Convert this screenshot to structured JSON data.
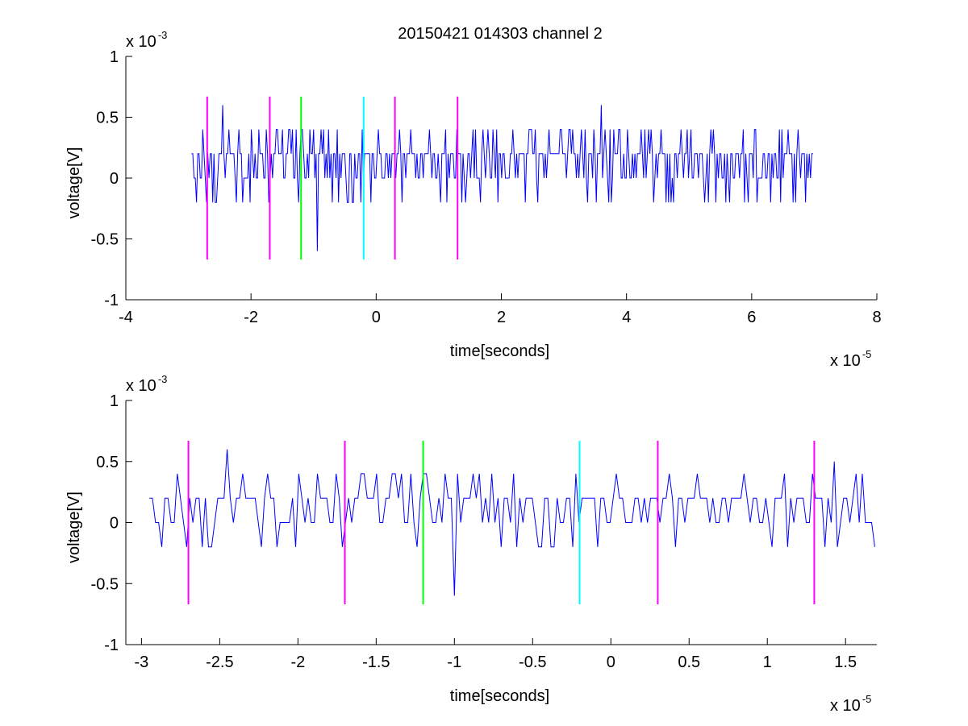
{
  "figure": {
    "title": "20150421 014303 channel 2"
  },
  "colors": {
    "trace": "#0000ff",
    "magenta": "#ff00ff",
    "green": "#00ff00",
    "cyan": "#00ffff",
    "axis": "#000000"
  },
  "chart_data": [
    {
      "type": "line",
      "xlabel": "time[seconds]",
      "ylabel": "voltage[V]",
      "x_multiplier_label": "x 10",
      "x_multiplier_exp": "-5",
      "y_multiplier_label": "x 10",
      "y_multiplier_exp": "-3",
      "xlim": [
        -4,
        8
      ],
      "ylim": [
        -1,
        1
      ],
      "xticks": [
        -4,
        -2,
        0,
        2,
        4,
        6,
        8
      ],
      "xtick_labels": [
        "-4",
        "-2",
        "0",
        "2",
        "4",
        "6",
        "8"
      ],
      "yticks": [
        -1,
        -0.5,
        0,
        0.5,
        1
      ],
      "ytick_labels": [
        "-1",
        "-0.5",
        "0",
        "0.5",
        "1"
      ],
      "grid": false,
      "series": [
        {
          "color": "#0000ff",
          "x_start": -2.95,
          "x_end": 7.0,
          "x_step": 0.0199,
          "y_levels": [
            -0.2,
            0,
            0.2,
            0.4
          ],
          "notable_points": [
            {
              "x": -0.95,
              "y": -0.6
            },
            {
              "x": -2.45,
              "y": 0.6
            },
            {
              "x": 3.6,
              "y": 0.6
            }
          ]
        }
      ],
      "markers": [
        {
          "x": -2.7,
          "y_min": -0.67,
          "y_max": 0.67,
          "color": "#ff00ff"
        },
        {
          "x": -1.7,
          "y_min": -0.67,
          "y_max": 0.67,
          "color": "#ff00ff"
        },
        {
          "x": -1.2,
          "y_min": -0.67,
          "y_max": 0.67,
          "color": "#00ff00"
        },
        {
          "x": -0.2,
          "y_min": -0.67,
          "y_max": 0.67,
          "color": "#00ffff"
        },
        {
          "x": 0.3,
          "y_min": -0.67,
          "y_max": 0.67,
          "color": "#ff00ff"
        },
        {
          "x": 1.3,
          "y_min": -0.67,
          "y_max": 0.67,
          "color": "#ff00ff"
        }
      ]
    },
    {
      "type": "line",
      "xlabel": "time[seconds]",
      "ylabel": "voltage[V]",
      "x_multiplier_label": "x 10",
      "x_multiplier_exp": "-5",
      "y_multiplier_label": "x 10",
      "y_multiplier_exp": "-3",
      "xlim": [
        -3.1,
        1.7
      ],
      "ylim": [
        -1,
        1
      ],
      "xticks": [
        -3,
        -2.5,
        -2,
        -1.5,
        -1,
        -0.5,
        0,
        0.5,
        1,
        1.5
      ],
      "xtick_labels": [
        "-3",
        "-2.5",
        "-2",
        "-1.5",
        "-1",
        "-0.5",
        "0",
        "0.5",
        "1",
        "1.5"
      ],
      "yticks": [
        -1,
        -0.5,
        0,
        0.5,
        1
      ],
      "ytick_labels": [
        "-1",
        "-0.5",
        "0",
        "0.5",
        "1"
      ],
      "grid": false,
      "series": [
        {
          "color": "#0000ff",
          "x_start": -2.95,
          "x_end": 1.7,
          "x_step": 0.0199,
          "y_levels": [
            -0.2,
            0,
            0.2,
            0.4
          ],
          "notable_points": [
            {
              "x": -0.99,
              "y": -0.6
            },
            {
              "x": -2.45,
              "y": 0.6
            },
            {
              "x": 1.43,
              "y": 0.5
            }
          ]
        }
      ],
      "markers": [
        {
          "x": -2.7,
          "y_min": -0.67,
          "y_max": 0.67,
          "color": "#ff00ff"
        },
        {
          "x": -1.7,
          "y_min": -0.67,
          "y_max": 0.67,
          "color": "#ff00ff"
        },
        {
          "x": -1.2,
          "y_min": -0.67,
          "y_max": 0.67,
          "color": "#00ff00"
        },
        {
          "x": -0.2,
          "y_min": -0.67,
          "y_max": 0.67,
          "color": "#00ffff"
        },
        {
          "x": 0.3,
          "y_min": -0.67,
          "y_max": 0.67,
          "color": "#ff00ff"
        },
        {
          "x": 1.3,
          "y_min": -0.67,
          "y_max": 0.67,
          "color": "#ff00ff"
        }
      ]
    }
  ]
}
